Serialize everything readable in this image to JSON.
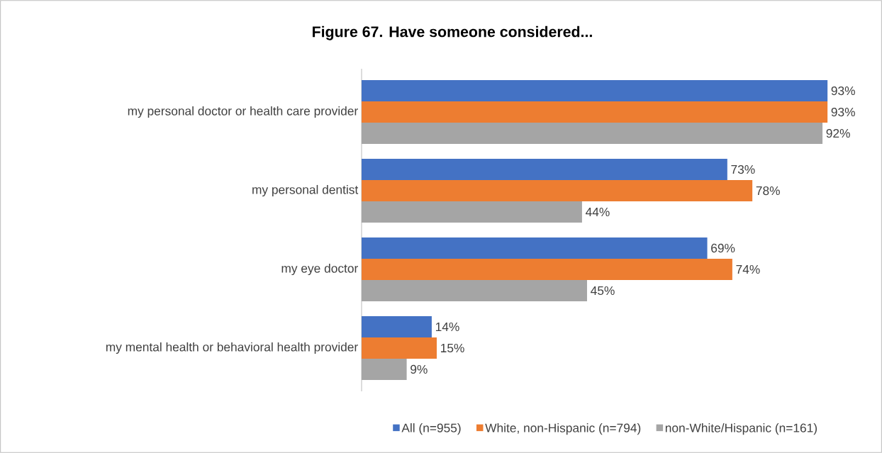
{
  "chart_data": {
    "type": "bar",
    "orientation": "horizontal",
    "title": "Figure 67. Have someone considered...",
    "categories": [
      "my personal doctor or health care provider",
      "my personal dentist",
      "my eye doctor",
      "my mental health or behavioral health provider"
    ],
    "series": [
      {
        "name": "All (n=955)",
        "color": "#4472c4",
        "values": [
          93,
          73,
          69,
          14
        ],
        "value_labels": [
          "93%",
          "73%",
          "69%",
          "14%"
        ]
      },
      {
        "name": "White, non-Hispanic (n=794)",
        "color": "#ed7d31",
        "values": [
          93,
          78,
          74,
          15
        ],
        "value_labels": [
          "93%",
          "78%",
          "74%",
          "15%"
        ]
      },
      {
        "name": "non-White/Hispanic (n=161)",
        "color": "#a5a5a5",
        "values": [
          92,
          44,
          45,
          9
        ],
        "value_labels": [
          "92%",
          "44%",
          "45%",
          "9%"
        ]
      }
    ],
    "tick_labels": "y",
    "legend": "bottom"
  }
}
